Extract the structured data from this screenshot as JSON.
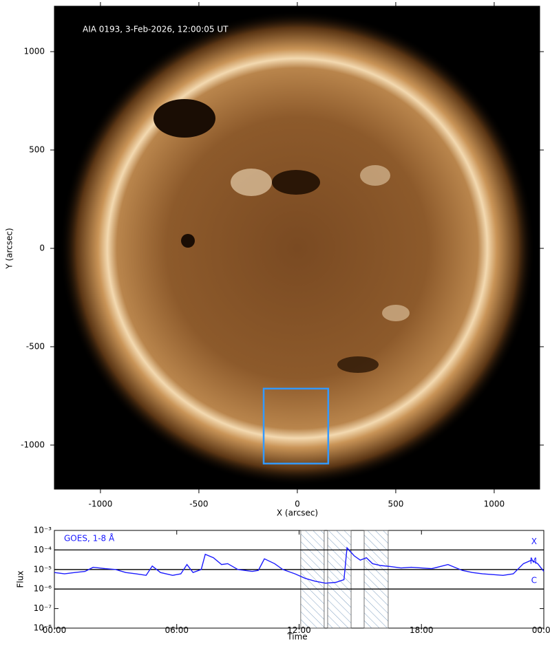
{
  "chart_data": [
    {
      "type": "image",
      "annotation": "AIA 0193, 3-Feb-2026, 12:00:05 UT",
      "xlabel": "X (arcsec)",
      "ylabel": "Y (arcsec)",
      "xlim": [
        -1234,
        1231
      ],
      "ylim": [
        -1224,
        1231
      ],
      "xticks": [
        -1000,
        -500,
        0,
        500,
        1000
      ],
      "yticks": [
        -1000,
        -500,
        0,
        500,
        1000
      ],
      "box": {
        "x": [
          -171,
          157
        ],
        "y": [
          -1094,
          -713
        ],
        "color": "#3399ff"
      }
    },
    {
      "type": "line",
      "xlabel": "Time",
      "ylabel": "Flux",
      "ylog": true,
      "xlim": [
        0,
        24
      ],
      "ylim": [
        1e-08,
        0.001
      ],
      "xticks": [
        {
          "value": 0,
          "label": "00:00"
        },
        {
          "value": 6,
          "label": "06:00"
        },
        {
          "value": 12,
          "label": "12:00"
        },
        {
          "value": 18,
          "label": "18:00"
        },
        {
          "value": 24,
          "label": "00:00"
        }
      ],
      "yticks": [
        {
          "value": 1e-08,
          "label": "10⁻⁸"
        },
        {
          "value": 1e-07,
          "label": "10⁻⁷"
        },
        {
          "value": 1e-06,
          "label": "10⁻⁶"
        },
        {
          "value": 1e-05,
          "label": "10⁻⁵"
        },
        {
          "value": 0.0001,
          "label": "10⁻⁴"
        },
        {
          "value": 0.001,
          "label": "10⁻³"
        }
      ],
      "levels": [
        {
          "value": 0.0001,
          "label": "X"
        },
        {
          "value": 1e-05,
          "label": "M"
        },
        {
          "value": 1e-06,
          "label": "C"
        }
      ],
      "shaded": [
        [
          12.08,
          13.23
        ],
        [
          13.4,
          14.55
        ],
        [
          15.19,
          16.37
        ]
      ],
      "x": [
        0,
        0.5,
        1,
        1.5,
        1.9,
        2.5,
        3,
        3.5,
        4,
        4.5,
        4.8,
        5.2,
        5.8,
        6.2,
        6.5,
        6.8,
        7.2,
        7.4,
        7.8,
        8.2,
        8.5,
        9,
        9.7,
        10,
        10.3,
        10.8,
        11.2,
        11.8,
        12.3,
        12.8,
        13.3,
        13.8,
        14.2,
        14.35,
        14.7,
        15,
        15.3,
        15.6,
        16,
        16.5,
        17,
        17.5,
        18,
        18.5,
        19.3,
        20,
        20.5,
        21,
        21.5,
        22,
        22.5,
        23,
        23.4,
        23.7,
        24
      ],
      "series": [
        {
          "name": "GOES, 1-8 Å",
          "color": "#1a1aff",
          "values": [
            7e-06,
            6e-06,
            7e-06,
            8e-06,
            1.3e-05,
            1.1e-05,
            1e-05,
            7e-06,
            6e-06,
            5e-06,
            1.5e-05,
            7e-06,
            5e-06,
            6e-06,
            1.8e-05,
            7e-06,
            1e-05,
            6e-05,
            4e-05,
            1.8e-05,
            2e-05,
            1e-05,
            8e-06,
            9e-06,
            3.5e-05,
            2e-05,
            1e-05,
            6e-06,
            3.5e-06,
            2.5e-06,
            2e-06,
            2.2e-06,
            3e-06,
            0.00013,
            5e-05,
            3e-05,
            4e-05,
            2e-05,
            1.6e-05,
            1.4e-05,
            1.2e-05,
            1.3e-05,
            1.2e-05,
            1.1e-05,
            1.8e-05,
            9e-06,
            7e-06,
            6e-06,
            5.5e-06,
            5e-06,
            6e-06,
            2e-05,
            3e-05,
            2e-05,
            8e-06
          ]
        }
      ]
    }
  ]
}
